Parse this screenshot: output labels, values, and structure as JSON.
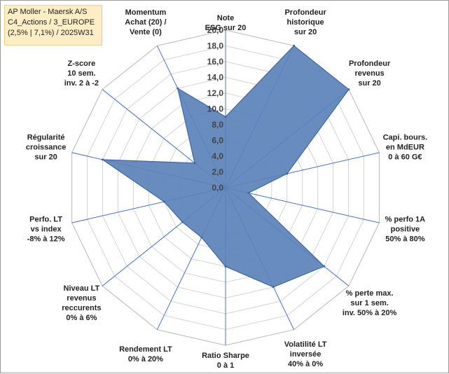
{
  "title_box": {
    "lines": [
      "AP Moller - Maersk A/S",
      "C4_Actions / 3_EUROPE",
      "(2,5% | 7,1%) / 2025W31"
    ]
  },
  "chart_data": {
    "type": "radar",
    "rlim": [
      0,
      20
    ],
    "tick_step": 2,
    "tick_labels": [
      "0,0",
      "2,0",
      "4,0",
      "6,0",
      "8,0",
      "10,0",
      "12,0",
      "14,0",
      "16,0",
      "18,0",
      "20,0"
    ],
    "grid": true,
    "legend": "none",
    "axes": [
      {
        "label": [
          "Note",
          "ESG sur 20"
        ],
        "value": 9.0
      },
      {
        "label": [
          "Profondeur",
          "historique",
          "sur 20"
        ],
        "value": 20.0
      },
      {
        "label": [
          "Profondeur",
          "revenus",
          "sur 20"
        ],
        "value": 20.0
      },
      {
        "label": [
          "Capi. bours.",
          "en MdEUR",
          "0 à 60 G€"
        ],
        "value": 8.0
      },
      {
        "label": [
          "% perfo 1A",
          "positive",
          "50% à 80%"
        ],
        "value": 3.0
      },
      {
        "label": [
          "% perte max.",
          "sur 1 sem.",
          "inv. 50% à 20%"
        ],
        "value": 16.0
      },
      {
        "label": [
          "Volatilité LT",
          "inversée",
          "40% à 0%"
        ],
        "value": 14.0
      },
      {
        "label": [
          "Ratio Sharpe",
          "0 à 1"
        ],
        "value": 10.0
      },
      {
        "label": [
          "Rendement LT",
          "0% à 20%"
        ],
        "value": 7.0
      },
      {
        "label": [
          "Niveau LT",
          "revenus",
          "reccurents",
          "0% à 6%"
        ],
        "value": 7.0
      },
      {
        "label": [
          "Perfo. LT",
          "vs index",
          "-8% à 12%"
        ],
        "value": 8.0
      },
      {
        "label": [
          "Régularité",
          "croissance",
          "sur 20"
        ],
        "value": 16.0
      },
      {
        "label": [
          "Z-score",
          "10 sem.",
          "inv. 2 à -2"
        ],
        "value": 5.0
      },
      {
        "label": [
          "Momentum",
          "Achat (20) /",
          "Vente (0)"
        ],
        "value": 14.0
      }
    ],
    "colors": {
      "fill": "#5b82b9",
      "stroke": "#3f67a6",
      "grid": "#d4d4d4",
      "spoke": "#4472c4"
    }
  }
}
